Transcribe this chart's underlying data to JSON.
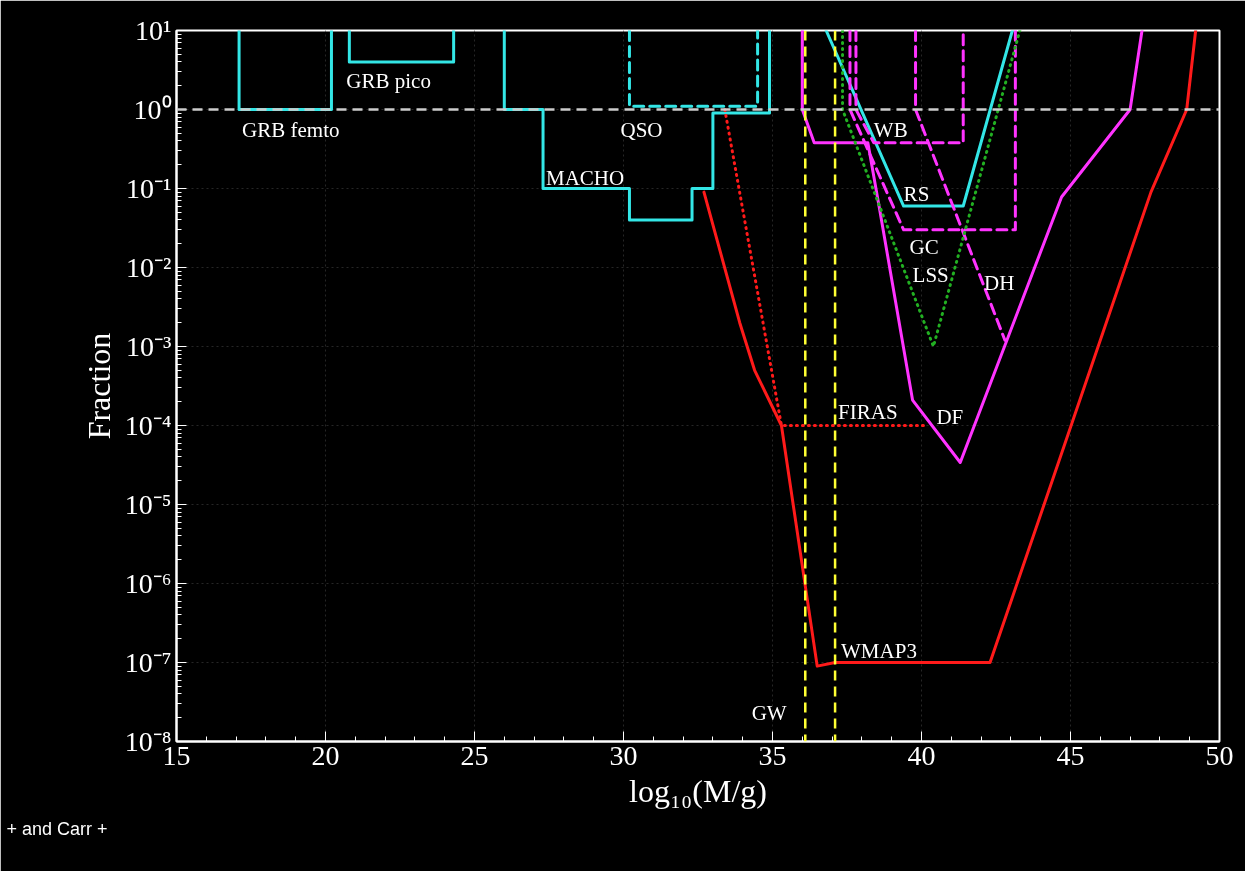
{
  "chart_data": {
    "type": "line",
    "xlabel": "log₁₀(M/g)",
    "ylabel": "Fraction",
    "log": "y",
    "grid": true,
    "xlim": [
      15,
      50
    ],
    "xticks": [
      15,
      20,
      25,
      30,
      35,
      40,
      45,
      50
    ],
    "ylim": [
      1e-08,
      10
    ],
    "yticks": [
      {
        "value": 10,
        "label": "10¹"
      },
      {
        "value": 1,
        "label": "10⁰"
      },
      {
        "value": 0.1,
        "label": "10⁻¹"
      },
      {
        "value": 0.01,
        "label": "10⁻²"
      },
      {
        "value": 0.001,
        "label": "10⁻³"
      },
      {
        "value": 0.0001,
        "label": "10⁻⁴"
      },
      {
        "value": 1e-05,
        "label": "10⁻⁵"
      },
      {
        "value": 1e-06,
        "label": "10⁻⁶"
      },
      {
        "value": 1e-07,
        "label": "10⁻⁷"
      },
      {
        "value": 1e-08,
        "label": "10⁻⁸"
      }
    ],
    "series": [
      {
        "name": "GRB femto",
        "color": "#33e6e6",
        "line_style": "solid",
        "x": [
          17.1,
          17.1,
          20.2,
          20.2
        ],
        "values": [
          10,
          1,
          1,
          10
        ]
      },
      {
        "name": "GRB pico",
        "color": "#33e6e6",
        "line_style": "solid",
        "x": [
          20.8,
          20.8,
          24.3,
          24.3
        ],
        "values": [
          10,
          4,
          4,
          10
        ]
      },
      {
        "name": "MACHO",
        "color": "#33e6e6",
        "line_style": "solid",
        "x": [
          26.0,
          26.0,
          27.3,
          27.3,
          30.2,
          30.2,
          32.3,
          32.3,
          33.0,
          33.0,
          34.9,
          34.9
        ],
        "values": [
          10,
          1,
          1,
          0.1,
          0.1,
          0.04,
          0.04,
          0.1,
          0.1,
          0.9,
          0.9,
          10
        ]
      },
      {
        "name": "QSO",
        "color": "#33e6e6",
        "line_style": "dashed",
        "x": [
          30.2,
          30.2,
          34.5,
          34.5
        ],
        "values": [
          10,
          1.1,
          1.1,
          10
        ]
      },
      {
        "name": "RS",
        "color": "#33e6e6",
        "line_style": "solid",
        "x": [
          36.8,
          39.4,
          41.4,
          43.05
        ],
        "values": [
          10,
          0.06,
          0.06,
          10
        ]
      },
      {
        "name": "WMAP3",
        "color": "#ff1a1a",
        "line_style": "solid",
        "x": [
          32.7,
          33.9,
          34.4,
          35.3,
          36.5,
          37.1,
          42.3,
          47.7,
          48.9,
          49.2
        ],
        "values": [
          0.09,
          0.002,
          0.0005,
          0.0001,
          9e-08,
          1e-07,
          1e-07,
          0.09,
          1,
          10
        ]
      },
      {
        "name": "FIRAS",
        "color": "#ff1a1a",
        "line_style": "dotted",
        "x": [
          33.4,
          35.3,
          40.2
        ],
        "values": [
          1,
          0.0001,
          0.0001
        ]
      },
      {
        "name": "DF",
        "color": "#ff33ff",
        "line_style": "solid",
        "x": [
          36.0,
          36.0,
          36.4,
          38.2,
          38.6,
          39.7,
          41.3,
          44.7,
          47.0,
          47.4
        ],
        "values": [
          10,
          1,
          0.38,
          0.38,
          0.053,
          0.00021,
          3.4e-05,
          0.078,
          1,
          10
        ]
      },
      {
        "name": "WB",
        "color": "#ff33ff",
        "line_style": "dashed",
        "x": [
          37.8,
          37.8,
          38.4,
          41.4,
          41.4
        ],
        "values": [
          10,
          1,
          0.38,
          0.38,
          10
        ]
      },
      {
        "name": "GC",
        "color": "#ff33ff",
        "line_style": "dashed",
        "x": [
          37.6,
          37.6,
          39.4,
          43.15,
          43.15
        ],
        "values": [
          10,
          1,
          0.03,
          0.03,
          10
        ]
      },
      {
        "name": "DH",
        "color": "#ff33ff",
        "line_style": "dashed",
        "x": [
          39.8,
          39.8,
          42.8
        ],
        "values": [
          10,
          1,
          0.0012
        ]
      },
      {
        "name": "LSS",
        "color": "#22b022",
        "line_style": "dotted",
        "x": [
          37.35,
          37.35,
          40.4,
          43.3
        ],
        "values": [
          10,
          1,
          0.001,
          10
        ]
      }
    ],
    "ref_lines": [
      {
        "axis": "y",
        "value": 1,
        "color": "#cccccc",
        "line_style": "dashed"
      },
      {
        "axis": "x",
        "value": 36.1,
        "color": "#ffff33",
        "line_style": "dashed",
        "label": "GW"
      },
      {
        "axis": "x",
        "value": 37.1,
        "color": "#ffff33",
        "line_style": "dashed"
      }
    ],
    "annotations": [
      "+       and  Carr +"
    ]
  }
}
